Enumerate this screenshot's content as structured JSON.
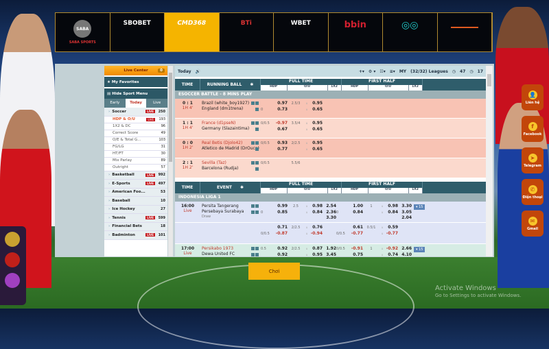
{
  "providers": [
    {
      "name": "SABA SPORTS",
      "active": false
    },
    {
      "name": "SBOBET",
      "active": false
    },
    {
      "name": "CMD368",
      "active": true
    },
    {
      "name": "BTi",
      "active": false
    },
    {
      "name": "WBET",
      "active": false
    },
    {
      "name": "bbin",
      "active": false
    },
    {
      "name": "",
      "active": false
    },
    {
      "name": "",
      "active": false
    }
  ],
  "sidebar": {
    "live_center": "Live Center",
    "live_count": "0",
    "favorites": "My Favorites",
    "hide_menu": "Hide Sport Menu",
    "tabs": [
      {
        "label": "Early",
        "active": false
      },
      {
        "label": "Today",
        "active": true
      },
      {
        "label": "Live",
        "active": false
      }
    ],
    "live_badge": "LIVE",
    "items": [
      {
        "label": "Soccer",
        "count": "250",
        "live": true,
        "type": "sport"
      },
      {
        "label": "HDP & O/U",
        "count": "193",
        "live": true,
        "type": "sub",
        "active": true
      },
      {
        "label": "1X2 & DC",
        "count": "96",
        "type": "sub"
      },
      {
        "label": "Correct Score",
        "count": "49",
        "type": "sub"
      },
      {
        "label": "O/E & Total G...",
        "count": "103",
        "type": "sub"
      },
      {
        "label": "FG/LG",
        "count": "31",
        "type": "sub"
      },
      {
        "label": "HT/FT",
        "count": "30",
        "type": "sub"
      },
      {
        "label": "Mix Parlay",
        "count": "89",
        "type": "sub"
      },
      {
        "label": "Outright",
        "count": "57",
        "type": "sub"
      },
      {
        "label": "Basketball",
        "count": "992",
        "live": true,
        "type": "sport"
      },
      {
        "label": "E-Sports",
        "count": "497",
        "live": true,
        "type": "sport"
      },
      {
        "label": "American Foo...",
        "count": "53",
        "type": "sport"
      },
      {
        "label": "Baseball",
        "count": "10",
        "type": "sport"
      },
      {
        "label": "Ice Hockey",
        "count": "27",
        "type": "sport"
      },
      {
        "label": "Tennis",
        "count": "599",
        "live": true,
        "type": "sport"
      },
      {
        "label": "Financial Bets",
        "count": "18",
        "type": "sport"
      },
      {
        "label": "Badminton",
        "count": "101",
        "live": true,
        "type": "sport"
      }
    ]
  },
  "toolbar": {
    "title": "Today",
    "sort": "MY",
    "leagues": "(32/32) Leagues",
    "count_a": "47",
    "count_b": "17"
  },
  "headers": {
    "time": "TIME",
    "running": "RUNNING BALL",
    "event": "EVENT",
    "full_time": "FULL TIME",
    "first_half": "FIRST HALF",
    "hdp": "HDP",
    "ou": "O/U",
    "x12": "1X2"
  },
  "sections": [
    {
      "type": "running",
      "league": "ESOCCER BATTLE - 8 MINS PLAY",
      "matches": [
        {
          "score": "0 : 1",
          "minute": "1H 4'",
          "home": "Brazil (white_boy1927)",
          "away": "England (dm1trena)",
          "home_red": false,
          "bg": "#f8c3b4",
          "lines": [
            [
              "",
              "0.97",
              "2.5/3",
              "u",
              "0.95",
              ""
            ],
            [
              "0",
              "0.73",
              "",
              "u",
              "0.65",
              ""
            ]
          ]
        },
        {
          "score": "1 : 1",
          "minute": "1H 4'",
          "home": "France (d1pseN)",
          "away": "Germany (Slazaintima)",
          "home_red": true,
          "bg": "#fbd9cd",
          "lines": [
            [
              "0/0.5",
              "-0.97",
              "3.5/4",
              "u",
              "0.95",
              ""
            ],
            [
              "",
              "0.67",
              "",
              "u",
              "0.65",
              ""
            ]
          ]
        },
        {
          "score": "0 : 0",
          "minute": "1H 2'",
          "home": "Real Betis (Djolo42)",
          "away": "Atletico de Madrid (DrOuca)",
          "home_red": true,
          "bg": "#f8c3b4",
          "lines": [
            [
              "0/0.5",
              "0.93",
              "2/2.5",
              "u",
              "0.95",
              ""
            ],
            [
              "",
              "0.77",
              "",
              "u",
              "0.65",
              ""
            ]
          ]
        },
        {
          "score": "2 : 1",
          "minute": "1H 2'",
          "home": "Sevilla (Taz)",
          "away": "Barcelona (Rudja)",
          "home_red": true,
          "bg": "#fbd9cd",
          "lines": [
            [
              "0/0.5",
              "",
              "5.5/6",
              "",
              "",
              ""
            ]
          ]
        }
      ]
    },
    {
      "type": "event",
      "league": "INDONESIA LIGA 1",
      "matches": [
        {
          "score": "16:00",
          "minute": "Live",
          "home": "Persita Tangerang",
          "away": "Persebaya Surabaya",
          "draw": "Draw",
          "home_red": false,
          "bg": "#dfe4f6",
          "more": "▾ 15",
          "lines": [
            [
              "",
              "0.99",
              "2.5",
              "u",
              "0.98",
              "2.54",
              "",
              "1.00",
              "1",
              "u",
              "0.98",
              "3.30"
            ],
            [
              "0",
              "0.85",
              "",
              "u",
              "0.84",
              "2.36",
              "0",
              "0.84",
              "",
              "u",
              "0.84",
              "3.05"
            ],
            [
              "",
              "",
              "",
              "",
              "",
              "3.30",
              "",
              "",
              "",
              "",
              "",
              "2.04"
            ]
          ]
        },
        {
          "score": "",
          "minute": "",
          "home": "",
          "away": "",
          "home_red": false,
          "bg": "#dfe4f6",
          "lines": [
            [
              "",
              "0.71",
              "2/2.5",
              "u",
              "0.76",
              "",
              "",
              "0.61",
              "0.5/1",
              "u",
              "0.59",
              ""
            ],
            [
              "0/0.5",
              "-0.87",
              "",
              "u",
              "-0.94",
              "",
              "0/0.5",
              "-0.77",
              "",
              "u",
              "-0.77",
              ""
            ]
          ]
        },
        {
          "score": "17:00",
          "minute": "Live",
          "home": "Persikabo 1973",
          "away": "Dewa United FC",
          "draw": "Draw",
          "home_red": true,
          "bg": "#d6ece4",
          "more": "▾ 15",
          "lines": [
            [
              "0.5",
              "0.92",
              "2/2.5",
              "u",
              "0.87",
              "1.92",
              "0/0.5",
              "-0.91",
              "1",
              "u",
              "-0.92",
              "2.66"
            ],
            [
              "",
              "0.92",
              "",
              "u",
              "0.95",
              "3.45",
              "",
              "0.75",
              "",
              "u",
              "0.74",
              "4.10"
            ],
            [
              "",
              "",
              "",
              "",
              "",
              "3.25",
              "",
              "",
              "",
              "",
              "",
              "2.00"
            ]
          ]
        }
      ]
    }
  ],
  "play_button": "Chơi",
  "social": [
    {
      "label": "Liên hệ",
      "icon": "user-icon"
    },
    {
      "label": "Facebook",
      "icon": "facebook-icon"
    },
    {
      "label": "Telegram",
      "icon": "telegram-icon"
    },
    {
      "label": "Điện thoại",
      "icon": "phone-icon"
    },
    {
      "label": "Gmail",
      "icon": "mail-icon"
    }
  ],
  "watermark": {
    "title": "Activate Windows",
    "sub": "Go to Settings to activate Windows."
  },
  "colors": {
    "accent": "#f5b400",
    "header": "#2f5d6b",
    "live_red": "#c4161c",
    "social": "#c2460a"
  }
}
